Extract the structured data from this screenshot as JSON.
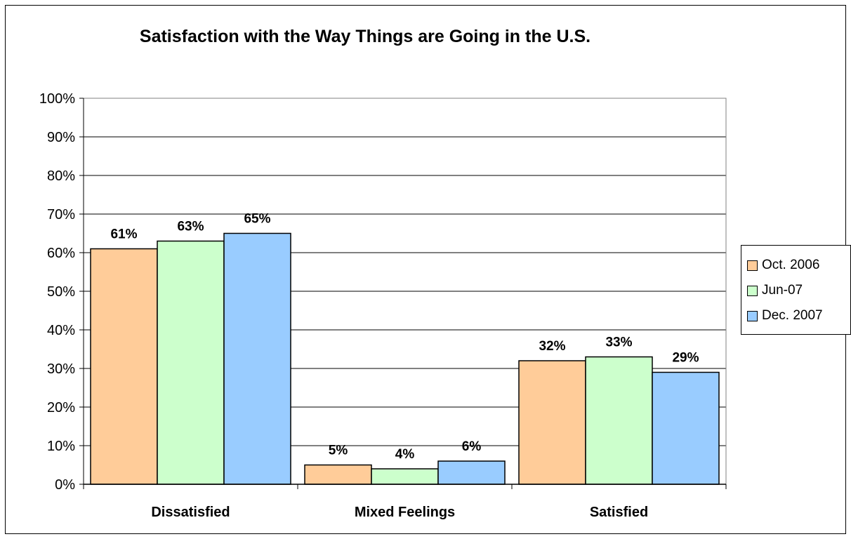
{
  "chart_data": {
    "type": "bar",
    "title": "Satisfaction with the Way Things are Going in the U.S.",
    "xlabel": "",
    "ylabel": "",
    "categories": [
      "Dissatisfied",
      "Mixed Feelings",
      "Satisfied"
    ],
    "ylim": [
      0,
      100
    ],
    "y_ticks": [
      0,
      10,
      20,
      30,
      40,
      50,
      60,
      70,
      80,
      90,
      100
    ],
    "y_tick_labels": [
      "0%",
      "10%",
      "20%",
      "30%",
      "40%",
      "50%",
      "60%",
      "70%",
      "80%",
      "90%",
      "100%"
    ],
    "grid": true,
    "legend_position": "right",
    "series": [
      {
        "name": "Oct. 2006",
        "color": "#FFCC99",
        "values": [
          61,
          5,
          32
        ],
        "labels": [
          "61%",
          "5%",
          "32%"
        ]
      },
      {
        "name": "Jun-07",
        "color": "#CCFFCC",
        "values": [
          63,
          4,
          33
        ],
        "labels": [
          "63%",
          "4%",
          "33%"
        ]
      },
      {
        "name": "Dec. 2007",
        "color": "#99CCFF",
        "values": [
          65,
          6,
          29
        ],
        "labels": [
          "65%",
          "6%",
          "29%"
        ]
      }
    ]
  }
}
